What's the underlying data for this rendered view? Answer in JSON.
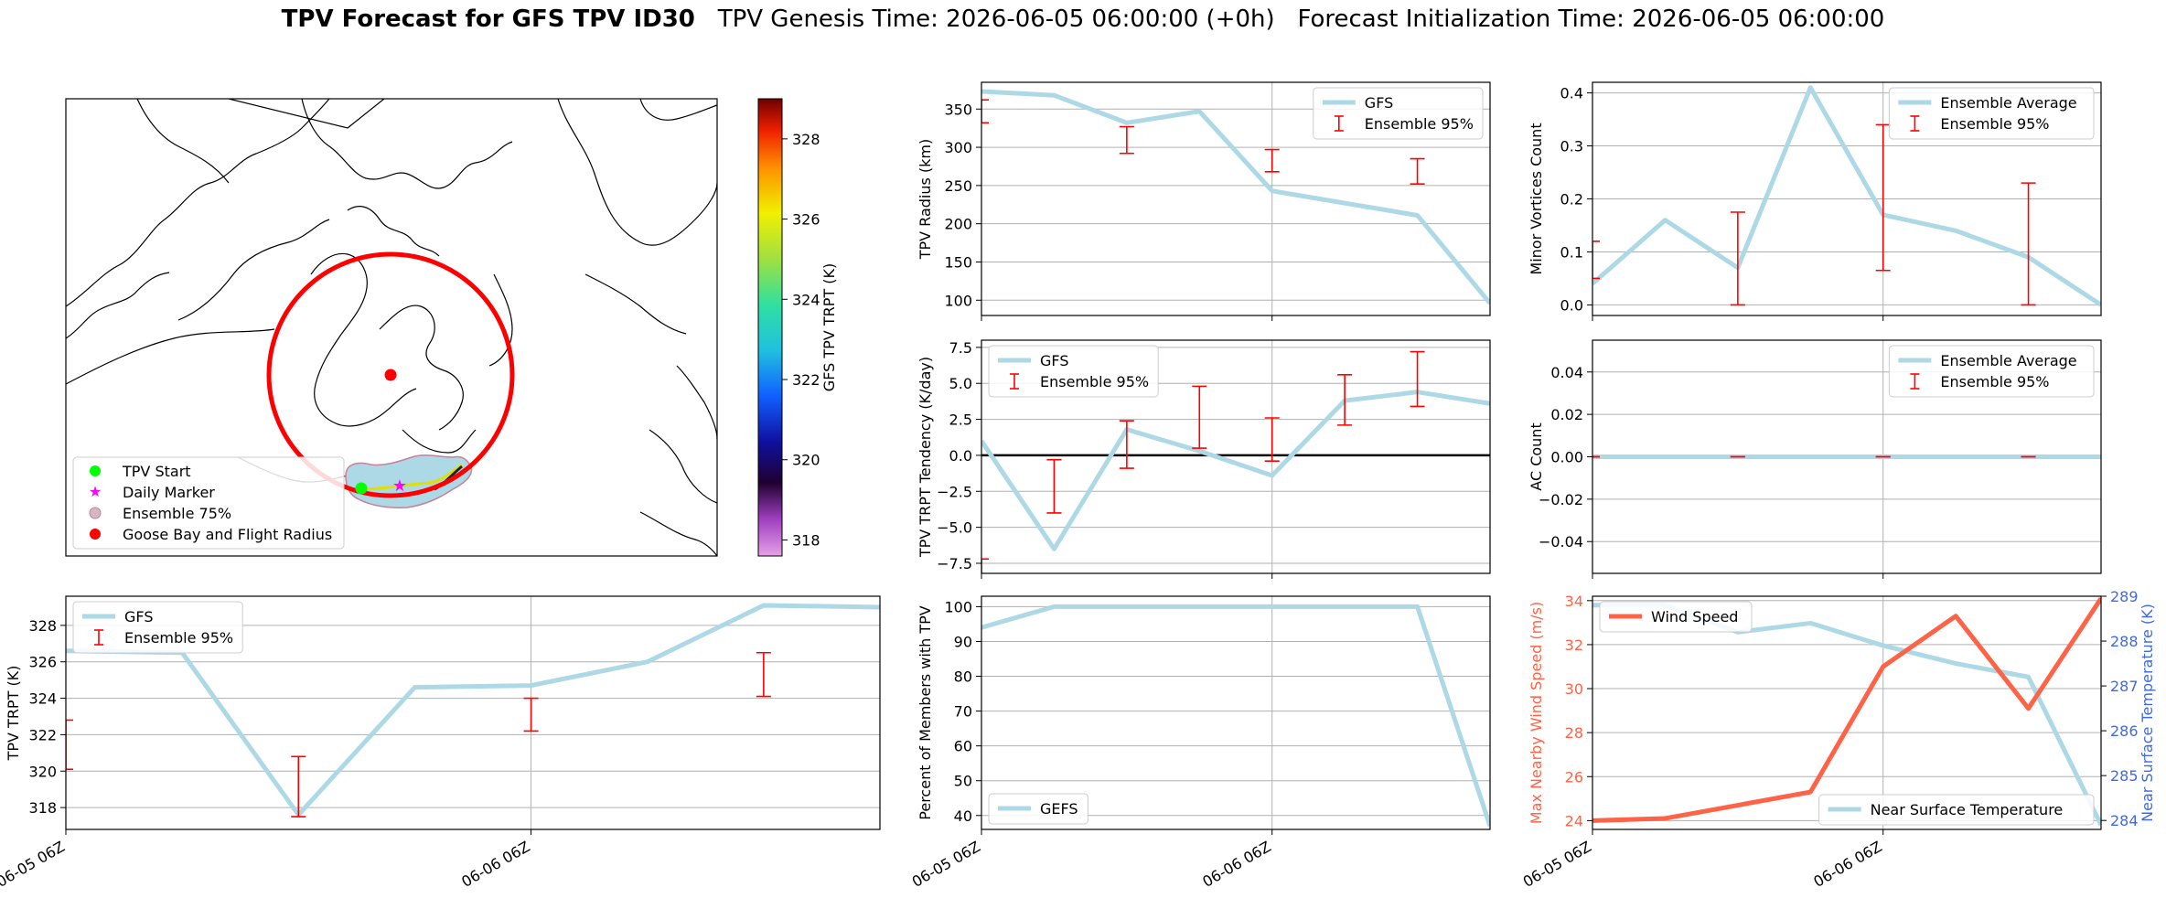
{
  "title": {
    "main": "TPV Forecast for GFS TPV ID30",
    "genesis": "TPV Genesis Time: 2026-06-05 06:00:00 (+0h)",
    "init": "Forecast Initialization Time: 2026-06-05 06:00:00"
  },
  "colors": {
    "gfs_line": "#add8e6",
    "errorbar": "#ff0000",
    "wind": "#ff6347",
    "temp_axis": "#4169e1",
    "circle": "#ff0000",
    "start": "#00ff00",
    "daily": "#ff00ff",
    "goose": "#ff0000"
  },
  "chart_data": [
    {
      "id": "map",
      "type": "map",
      "legend": [
        {
          "label": "TPV Start",
          "marker": "dot",
          "color": "#00ff00"
        },
        {
          "label": "Daily Marker",
          "marker": "star",
          "color": "#ff00ff"
        },
        {
          "label": "Ensemble 75%",
          "marker": "dot",
          "color": "#d3b8c0"
        },
        {
          "label": "Goose Bay and Flight Radius",
          "marker": "dot",
          "color": "#ff0000"
        }
      ],
      "colorbar": {
        "label": "GFS TPV TRPT (K)",
        "ticks": [
          "318",
          "320",
          "322",
          "324",
          "326",
          "328"
        ],
        "tick_values": [
          318,
          320,
          322,
          324,
          326,
          328
        ],
        "range": [
          317.6,
          329
        ]
      }
    },
    {
      "id": "trpt",
      "type": "line",
      "ylabel": "TPV TRPT (K)",
      "ylim": [
        316.8,
        329.6
      ],
      "yticks": [
        318,
        320,
        322,
        324,
        326,
        328
      ],
      "xticks": [
        "06-05 06Z",
        "06-06 06Z"
      ],
      "xtick_values": [
        0,
        24
      ],
      "xlim": [
        0,
        42
      ],
      "x": [
        0,
        6,
        12,
        18,
        24,
        30,
        36,
        42
      ],
      "series": [
        {
          "name": "GFS",
          "values": [
            326.6,
            326.5,
            317.6,
            324.6,
            324.7,
            326.0,
            329.1,
            329.0
          ]
        }
      ],
      "errorbars": {
        "name": "Ensemble 95%",
        "x": [
          0,
          12,
          24,
          36
        ],
        "low": [
          320.1,
          317.5,
          322.2,
          324.1
        ],
        "high": [
          322.8,
          320.8,
          324.0,
          326.5
        ]
      },
      "legend": [
        "GFS",
        "Ensemble 95%"
      ],
      "legend_position": "top-left",
      "grid": true
    },
    {
      "id": "radius",
      "type": "line",
      "ylabel": "TPV Radius (km)",
      "ylim": [
        80,
        385
      ],
      "yticks": [
        100,
        150,
        200,
        250,
        300,
        350
      ],
      "xlim": [
        0,
        42
      ],
      "xtick_values": [
        0,
        24
      ],
      "x": [
        0,
        6,
        12,
        18,
        24,
        30,
        36,
        42
      ],
      "series": [
        {
          "name": "GFS",
          "values": [
            373,
            368,
            332,
            347,
            243,
            227,
            211,
            96
          ]
        }
      ],
      "errorbars": {
        "name": "Ensemble 95%",
        "x": [
          0,
          12,
          24,
          36
        ],
        "low": [
          332,
          292,
          268,
          252
        ],
        "high": [
          362,
          327,
          297,
          285
        ]
      },
      "legend": [
        "GFS",
        "Ensemble 95%"
      ],
      "legend_position": "top-right",
      "grid": true
    },
    {
      "id": "tendency",
      "type": "line",
      "ylabel": "TPV TRPT Tendency (K/day)",
      "ylim": [
        -8.2,
        8.0
      ],
      "yticks": [
        -7.5,
        -5.0,
        -2.5,
        0.0,
        2.5,
        5.0,
        7.5
      ],
      "ytick_labels": [
        "−7.5",
        "−5.0",
        "−2.5",
        "0.0",
        "2.5",
        "5.0",
        "7.5"
      ],
      "xlim": [
        0,
        42
      ],
      "xtick_values": [
        0,
        24
      ],
      "zero_line": true,
      "x": [
        0,
        6,
        12,
        18,
        24,
        30,
        36,
        42
      ],
      "series": [
        {
          "name": "GFS",
          "values": [
            1.0,
            -6.5,
            1.8,
            0.3,
            -1.4,
            3.8,
            4.4,
            3.6
          ]
        }
      ],
      "errorbars": {
        "name": "Ensemble 95%",
        "x": [
          0,
          6,
          12,
          18,
          24,
          30,
          36
        ],
        "low": [
          -9.0,
          -4.0,
          -0.9,
          0.5,
          -0.4,
          2.1,
          3.4
        ],
        "high": [
          -7.2,
          -0.3,
          2.4,
          4.8,
          2.6,
          5.6,
          7.2
        ]
      },
      "legend": [
        "GFS",
        "Ensemble 95%"
      ],
      "legend_position": "top-left",
      "grid": true
    },
    {
      "id": "percent",
      "type": "line",
      "ylabel": "Percent of Members with TPV",
      "ylim": [
        36,
        103
      ],
      "yticks": [
        40,
        50,
        60,
        70,
        80,
        90,
        100
      ],
      "xticks": [
        "06-05 06Z",
        "06-06 06Z"
      ],
      "xtick_values": [
        0,
        24
      ],
      "xlim": [
        0,
        42
      ],
      "x": [
        0,
        6,
        12,
        18,
        24,
        30,
        36,
        42
      ],
      "series": [
        {
          "name": "GEFS",
          "values": [
            94,
            100,
            100,
            100,
            100,
            100,
            100,
            37
          ]
        }
      ],
      "legend": [
        "GEFS"
      ],
      "legend_position": "bottom-left",
      "grid": true
    },
    {
      "id": "minor",
      "type": "line",
      "ylabel": "Minor Vortices Count",
      "ylim": [
        -0.02,
        0.42
      ],
      "yticks": [
        0.0,
        0.1,
        0.2,
        0.3,
        0.4
      ],
      "ytick_labels": [
        "0.0",
        "0.1",
        "0.2",
        "0.3",
        "0.4"
      ],
      "xlim": [
        0,
        42
      ],
      "xtick_values": [
        0,
        24
      ],
      "x": [
        0,
        6,
        12,
        18,
        24,
        30,
        36,
        42
      ],
      "series": [
        {
          "name": "Ensemble Average",
          "values": [
            0.04,
            0.16,
            0.07,
            0.41,
            0.17,
            0.14,
            0.09,
            0.0
          ]
        }
      ],
      "errorbars": {
        "name": "Ensemble 95%",
        "x": [
          0,
          12,
          24,
          36
        ],
        "low": [
          0.05,
          0.0,
          0.065,
          0.0
        ],
        "high": [
          0.12,
          0.175,
          0.34,
          0.23
        ]
      },
      "legend": [
        "Ensemble Average",
        "Ensemble 95%"
      ],
      "legend_position": "top-right",
      "grid": true
    },
    {
      "id": "ac",
      "type": "line",
      "ylabel": "AC Count",
      "ylim": [
        -0.055,
        0.055
      ],
      "yticks": [
        -0.04,
        -0.02,
        0.0,
        0.02,
        0.04
      ],
      "ytick_labels": [
        "−0.04",
        "−0.02",
        "0.00",
        "0.02",
        "0.04"
      ],
      "xlim": [
        0,
        42
      ],
      "xtick_values": [
        0,
        24
      ],
      "x": [
        0,
        6,
        12,
        18,
        24,
        30,
        36,
        42
      ],
      "series": [
        {
          "name": "Ensemble Average",
          "values": [
            0,
            0,
            0,
            0,
            0,
            0,
            0,
            0
          ]
        }
      ],
      "errorbars": {
        "name": "Ensemble 95%",
        "x": [
          0,
          12,
          24,
          36
        ],
        "low": [
          0,
          0,
          0,
          0
        ],
        "high": [
          0,
          0,
          0,
          0
        ]
      },
      "legend": [
        "Ensemble Average",
        "Ensemble 95%"
      ],
      "legend_position": "top-right",
      "grid": true
    },
    {
      "id": "wind",
      "type": "line",
      "ylabel": "Max Nearby Wind Speed (m/s)",
      "ylabel_right": "Near Surface Temperature (K)",
      "ylim": [
        23.6,
        34.2
      ],
      "yticks": [
        24,
        26,
        28,
        30,
        32,
        34
      ],
      "ylim_right": [
        283.8,
        289.0
      ],
      "yticks_right": [
        284,
        285,
        286,
        287,
        288,
        289
      ],
      "xticks": [
        "06-05 06Z",
        "06-06 06Z"
      ],
      "xtick_values": [
        0,
        24
      ],
      "xlim": [
        0,
        42
      ],
      "x": [
        0,
        6,
        12,
        18,
        24,
        30,
        36,
        42
      ],
      "series": [
        {
          "name": "Wind Speed",
          "values": [
            24.0,
            24.1,
            24.7,
            25.3,
            31.0,
            33.3,
            29.1,
            34.1
          ],
          "axis": "left"
        },
        {
          "name": "Near Surface Temperature",
          "values": [
            288.8,
            288.8,
            288.2,
            288.4,
            287.9,
            287.5,
            287.2,
            283.9
          ],
          "axis": "right"
        }
      ],
      "legend": [
        "Wind Speed",
        "Near Surface Temperature"
      ],
      "grid": true
    }
  ]
}
